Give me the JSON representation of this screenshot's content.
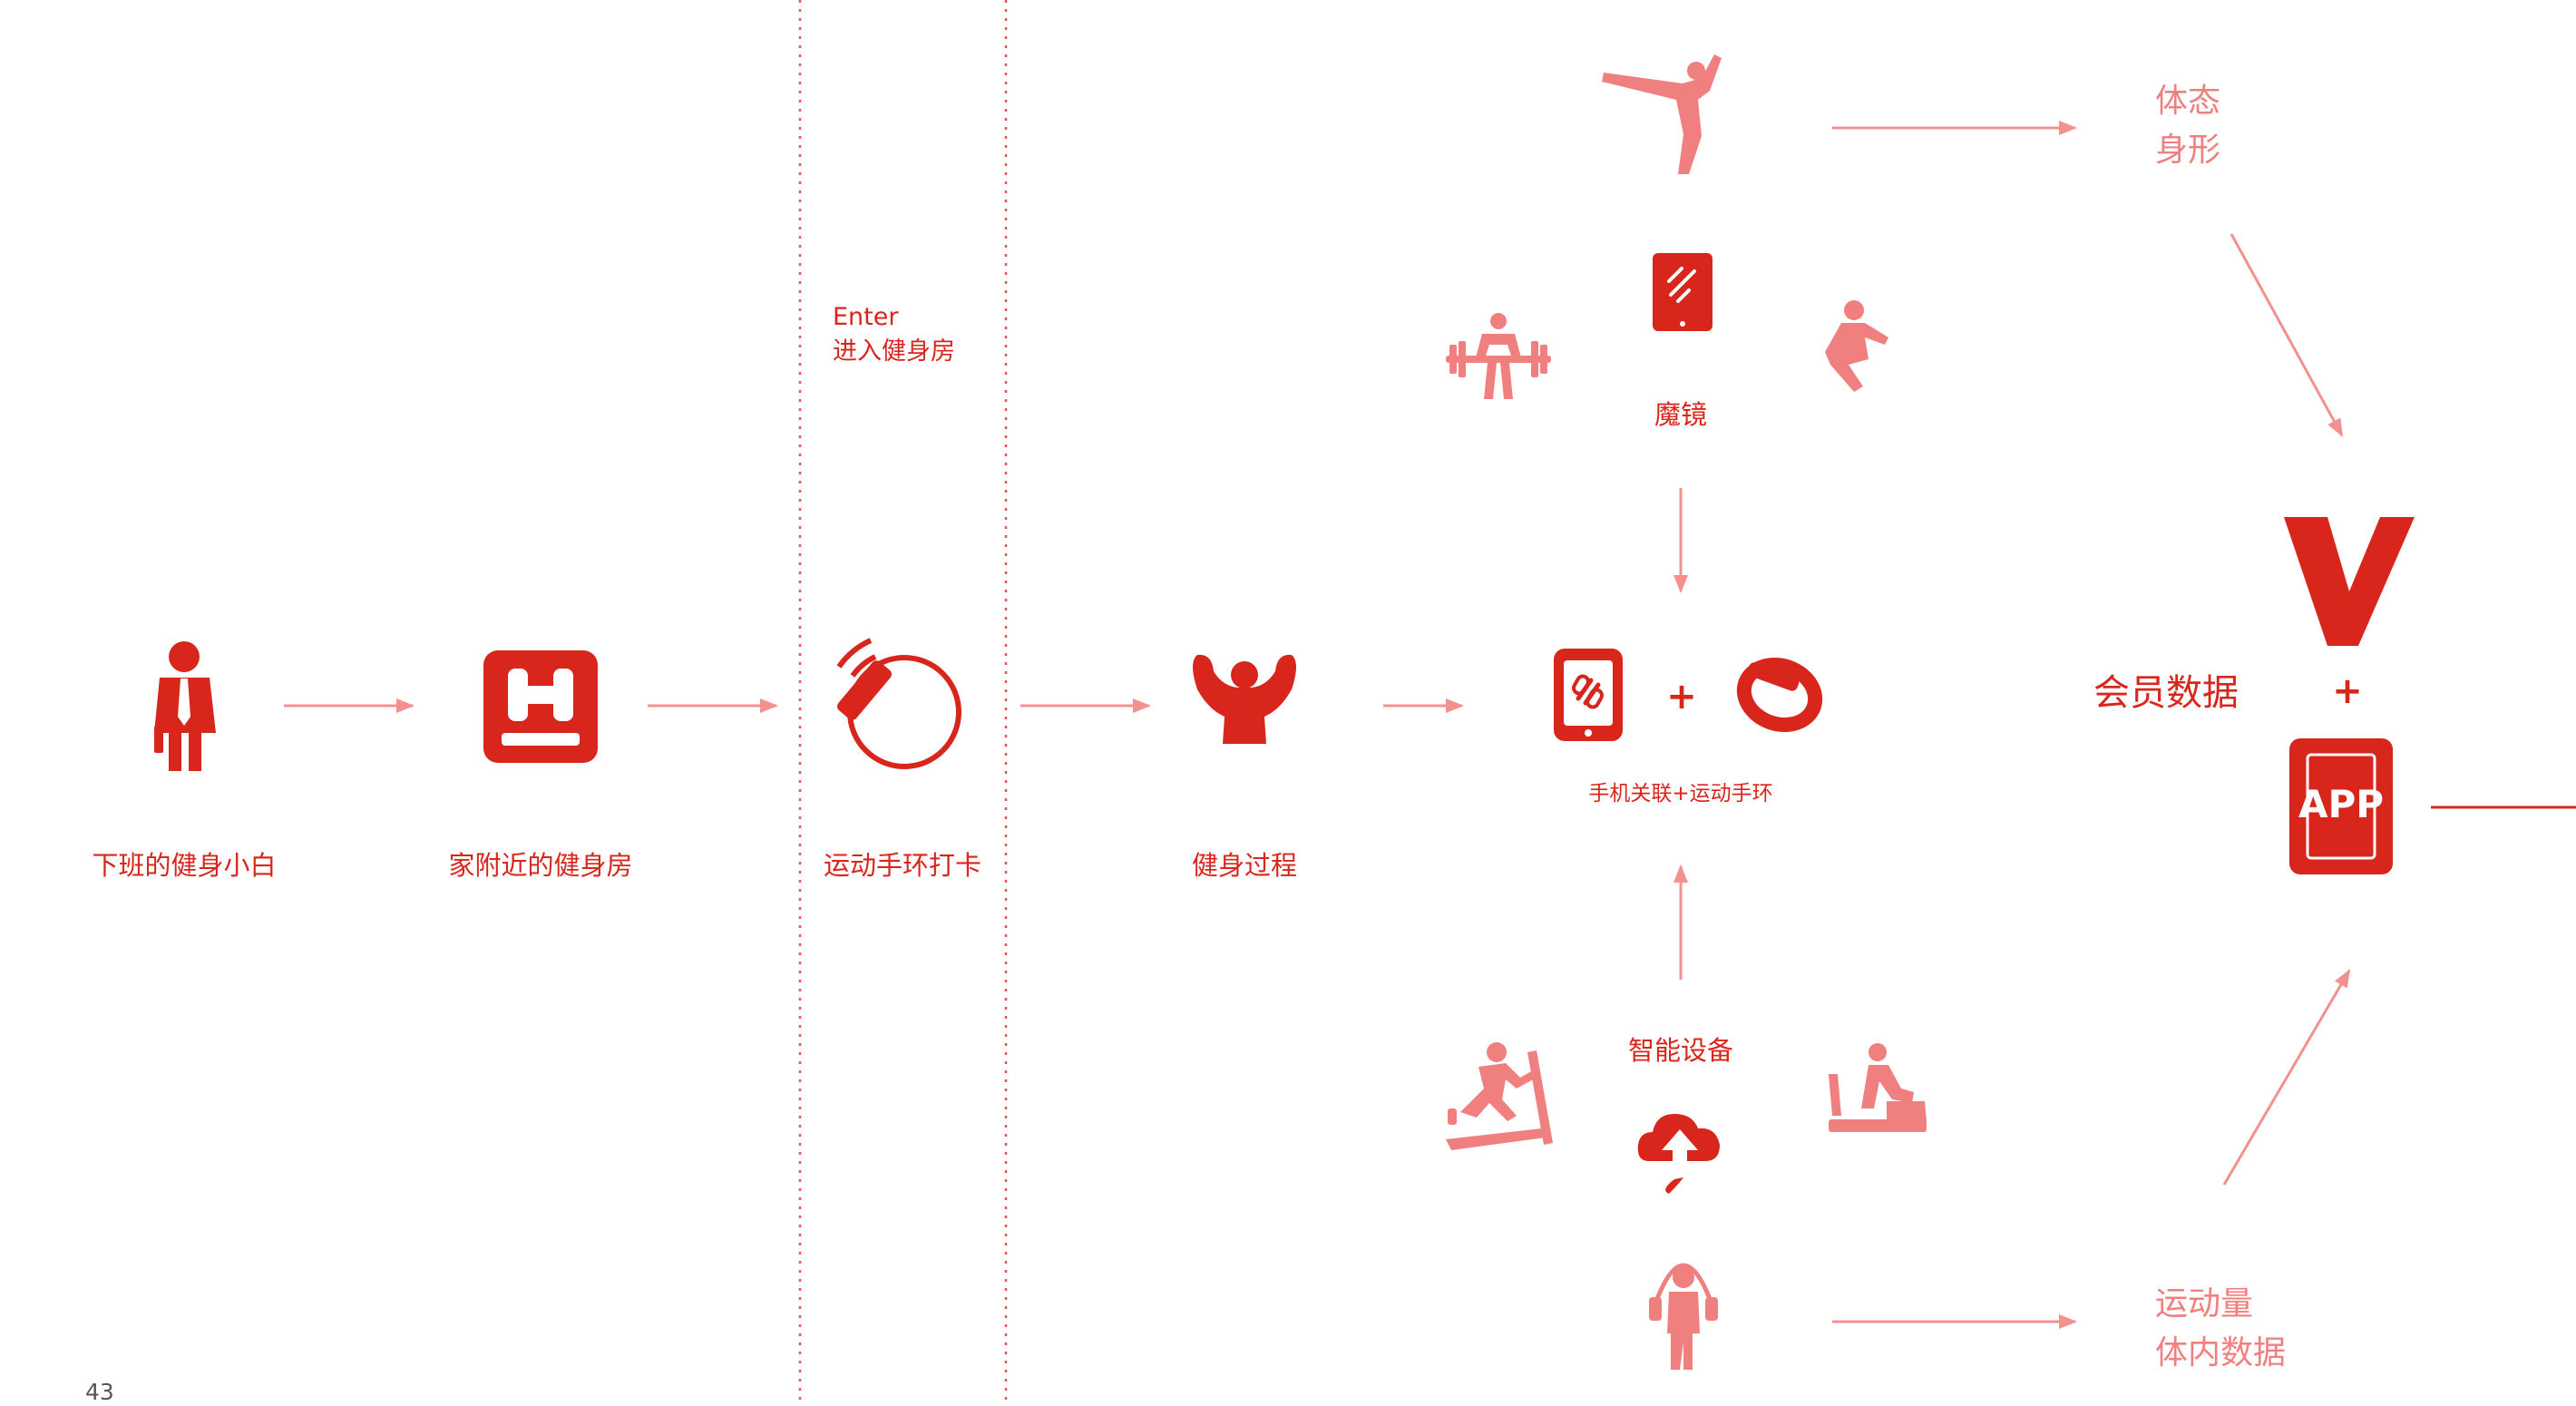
{
  "colors": {
    "red": "#d9261c",
    "pink": "#f08080",
    "line": "#f39090",
    "page_number": "#555555"
  },
  "stages": {
    "beginner": {
      "label": "下班的健身小白",
      "icon": "businessman-icon"
    },
    "gym": {
      "label": "家附近的健身房",
      "icon": "dumbbell-icon"
    },
    "checkin": {
      "label": "运动手环打卡",
      "icon": "wristband-tap-icon"
    },
    "workout": {
      "label": "健身过程",
      "icon": "muscle-icon"
    }
  },
  "enter": {
    "en": "Enter",
    "cn": "进入健身房"
  },
  "mirror": {
    "label": "魔镜",
    "icon": "tablet-icon"
  },
  "device_link": {
    "plus": "+",
    "label": "手机关联+运动手环"
  },
  "smart_devices": {
    "label": "智能设备",
    "icon": "cloud-upload-icon"
  },
  "outputs": {
    "posture_line1": "体态",
    "posture_line2": "身形",
    "activity_line1": "运动量",
    "activity_line2": "体内数据"
  },
  "member_data": {
    "label": "会员数据"
  },
  "brand": {
    "plus": "+",
    "app_label": "APP"
  },
  "page_number": "43"
}
